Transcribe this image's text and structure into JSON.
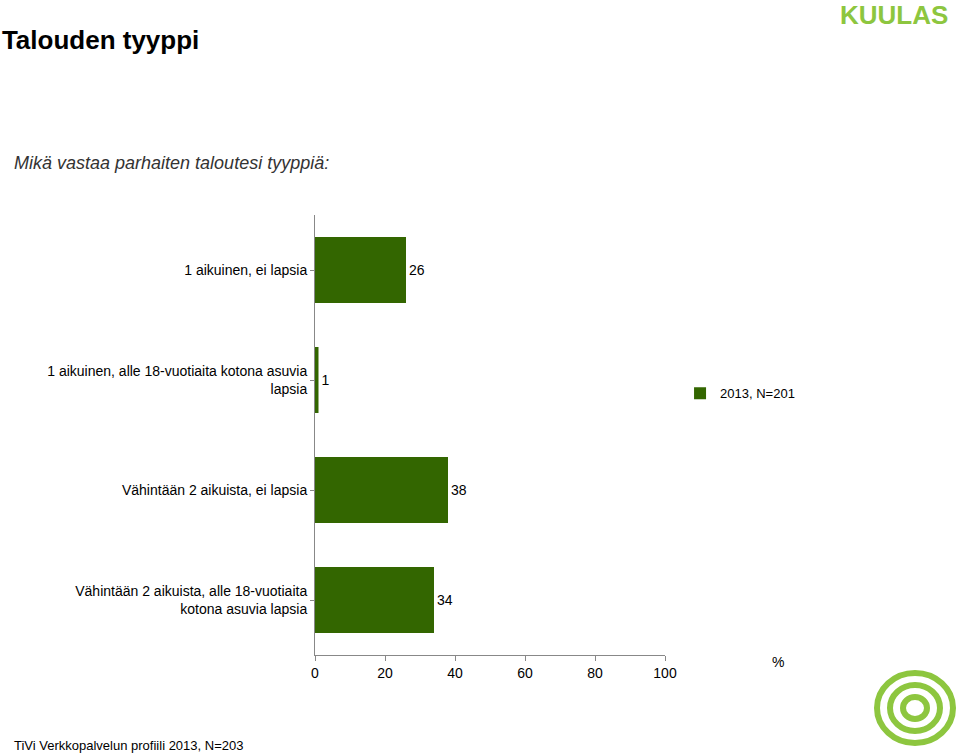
{
  "chart_data": {
    "type": "bar",
    "orientation": "horizontal",
    "title": "Talouden tyyppi",
    "subtitle": "Mikä vastaa parhaiten taloutesi tyyppiä:",
    "x_label": "%",
    "source": "TiVi Verkkopalvelun profiili 2013, N=203",
    "logo": "KUULAS",
    "categories": [
      "1 aikuinen, ei lapsia",
      "1 aikuinen, alle 18-vuotiaita kotona asuvia lapsia",
      "Vähintään 2 aikuista, ei lapsia",
      "Vähintään 2 aikuista, alle 18-vuotiaita kotona asuvia lapsia"
    ],
    "series": [
      {
        "name": "2013, N=201",
        "color": "#336600",
        "values": [
          26,
          1,
          38,
          34
        ]
      }
    ],
    "xlim": [
      0,
      100
    ],
    "xticks": [
      0,
      20,
      40,
      60,
      80,
      100
    ],
    "grid": false,
    "legend": "right",
    "data_labels": true
  }
}
